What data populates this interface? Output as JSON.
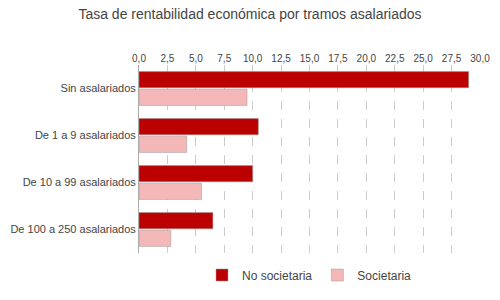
{
  "chart_data": {
    "type": "bar",
    "orientation": "horizontal",
    "title": "Tasa de rentabilidad económica por tramos asalariados",
    "categories": [
      "Sin asalariados",
      "De 1 a 9 asalariados",
      "De 10 a 99 asalariados",
      "De 100 a 250 asalariados"
    ],
    "series": [
      {
        "name": "No societaria",
        "color": "#bb0000",
        "values": [
          29.0,
          10.5,
          10.0,
          6.5
        ]
      },
      {
        "name": "Societaria",
        "color": "#f4b8b8",
        "values": [
          9.5,
          4.2,
          5.5,
          2.8
        ]
      }
    ],
    "xlim": [
      0,
      30
    ],
    "xticks": [
      {
        "value": 0.0,
        "label": "0,0"
      },
      {
        "value": 2.5,
        "label": "2,5"
      },
      {
        "value": 5.0,
        "label": "5,0"
      },
      {
        "value": 7.5,
        "label": "7,5"
      },
      {
        "value": 10.0,
        "label": "10,0"
      },
      {
        "value": 12.5,
        "label": "12,5"
      },
      {
        "value": 15.0,
        "label": "15,0"
      },
      {
        "value": 17.5,
        "label": "17,5"
      },
      {
        "value": 20.0,
        "label": "20,0"
      },
      {
        "value": 22.5,
        "label": "22,5"
      },
      {
        "value": 25.0,
        "label": "25,0"
      },
      {
        "value": 27.5,
        "label": "27,5"
      },
      {
        "value": 30.0,
        "label": "30,0"
      }
    ],
    "grid": true,
    "legend": "bottom"
  }
}
